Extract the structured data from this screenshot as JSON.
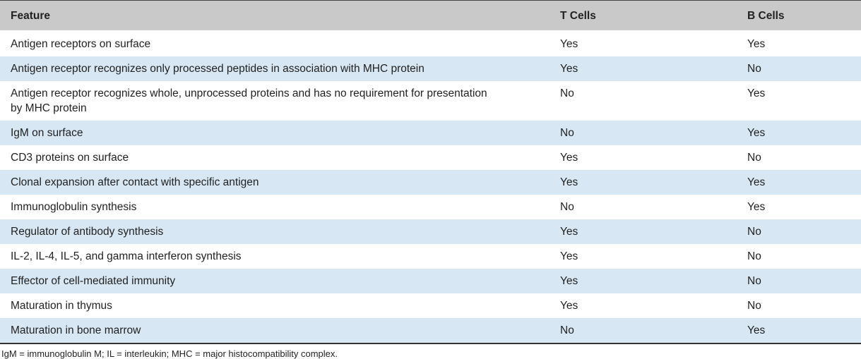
{
  "table": {
    "header": [
      "Feature",
      "T Cells",
      "B Cells"
    ],
    "rows": [
      [
        "Antigen receptors on surface",
        "Yes",
        "Yes"
      ],
      [
        "Antigen receptor recognizes only processed peptides in association with MHC protein",
        "Yes",
        "No"
      ],
      [
        "Antigen receptor recognizes whole, unprocessed proteins and has no requirement for presentation by MHC protein",
        "No",
        "Yes"
      ],
      [
        "IgM on surface",
        "No",
        "Yes"
      ],
      [
        "CD3 proteins on surface",
        "Yes",
        "No"
      ],
      [
        "Clonal expansion after contact with specific antigen",
        "Yes",
        "Yes"
      ],
      [
        "Immunoglobulin synthesis",
        "No",
        "Yes"
      ],
      [
        "Regulator of antibody synthesis",
        "Yes",
        "No"
      ],
      [
        "IL-2, IL-4, IL-5, and gamma interferon synthesis",
        "Yes",
        "No"
      ],
      [
        "Effector of cell-mediated immunity",
        "Yes",
        "No"
      ],
      [
        "Maturation in thymus",
        "Yes",
        "No"
      ],
      [
        "Maturation in bone marrow",
        "No",
        "Yes"
      ]
    ]
  },
  "footnote": "IgM = immunoglobulin M; IL = interleukin; MHC = major histocompatibility complex."
}
